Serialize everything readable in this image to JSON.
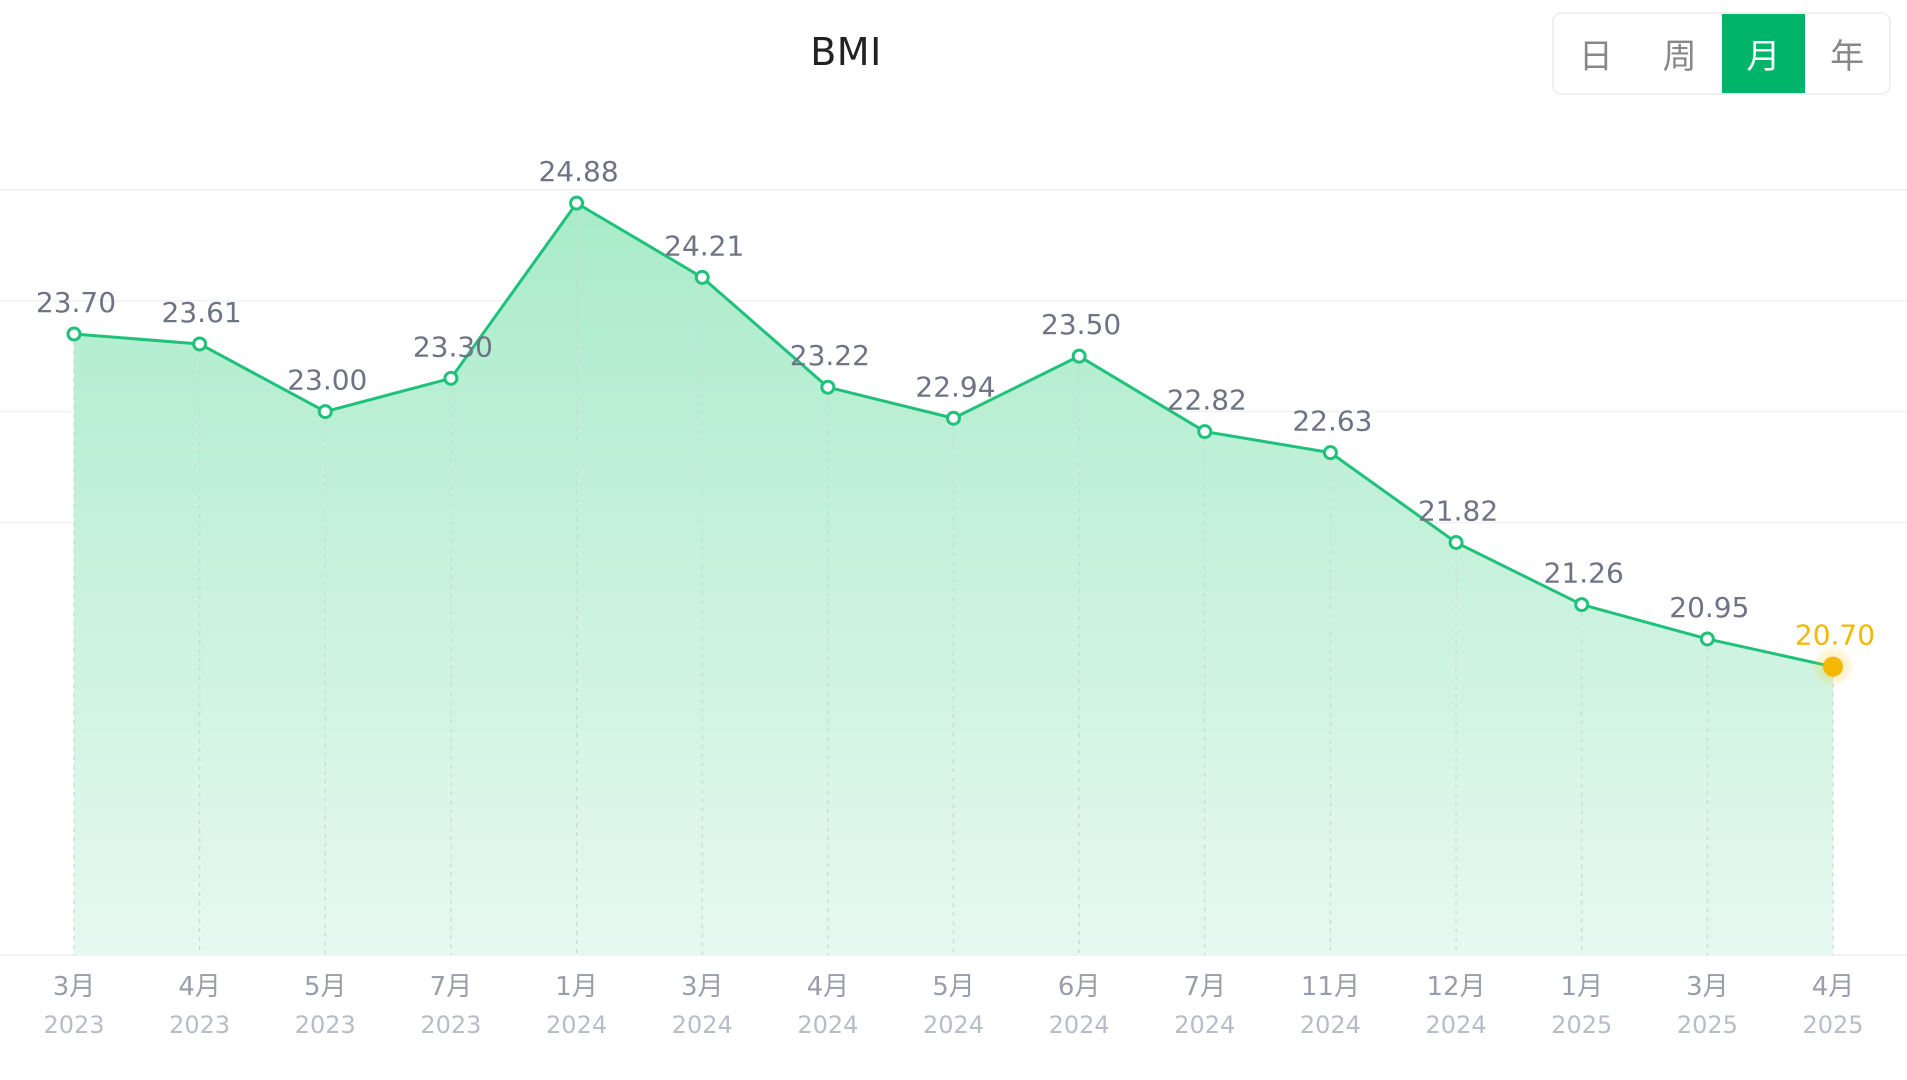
{
  "title": "BMI",
  "period_tabs": [
    {
      "label": "日",
      "active": false
    },
    {
      "label": "周",
      "active": false
    },
    {
      "label": "月",
      "active": true
    },
    {
      "label": "年",
      "active": false
    }
  ],
  "colors": {
    "line": "#1fc17b",
    "area_top": "#a8ebc8",
    "highlight": "#f5b800",
    "tab_active": "#00b56a"
  },
  "chart_data": {
    "type": "area",
    "title": "BMI",
    "categories": [
      [
        "3月",
        "2023"
      ],
      [
        "4月",
        "2023"
      ],
      [
        "5月",
        "2023"
      ],
      [
        "7月",
        "2023"
      ],
      [
        "1月",
        "2024"
      ],
      [
        "3月",
        "2024"
      ],
      [
        "4月",
        "2024"
      ],
      [
        "5月",
        "2024"
      ],
      [
        "6月",
        "2024"
      ],
      [
        "7月",
        "2024"
      ],
      [
        "11月",
        "2024"
      ],
      [
        "12月",
        "2024"
      ],
      [
        "1月",
        "2025"
      ],
      [
        "3月",
        "2025"
      ],
      [
        "4月",
        "2025"
      ]
    ],
    "series": [
      {
        "values": [
          23.7,
          23.61,
          23.0,
          23.3,
          24.88,
          24.21,
          23.22,
          22.94,
          23.5,
          22.82,
          22.63,
          21.82,
          21.26,
          20.95,
          20.7
        ]
      }
    ],
    "data_labels": [
      "23.70",
      "23.61",
      "23.00",
      "23.30",
      "24.88",
      "24.21",
      "23.22",
      "22.94",
      "23.50",
      "22.82",
      "22.63",
      "21.82",
      "21.26",
      "20.95",
      "20.70"
    ],
    "highlight_index": 14,
    "ylim": [
      18.1,
      25.9
    ],
    "grid": true
  }
}
